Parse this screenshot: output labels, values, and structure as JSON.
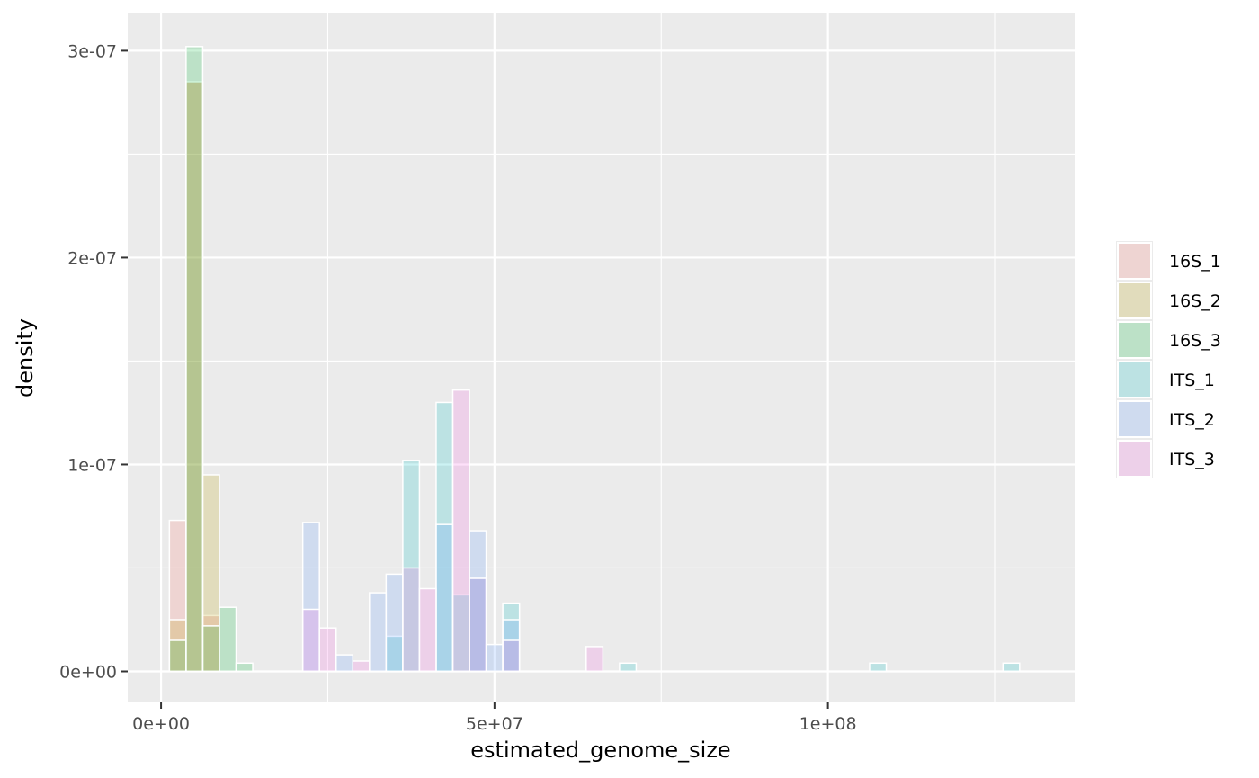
{
  "chart_data": {
    "type": "histogram",
    "xlabel": "estimated_genome_size",
    "ylabel": "density",
    "xlim": [
      -5000000,
      137000000
    ],
    "ylim": [
      -1.5e-08,
      3.18e-07
    ],
    "bin_width": 2500000,
    "x_ticks": [
      {
        "value": 0,
        "label": "0e+00"
      },
      {
        "value": 50000000,
        "label": "5e+07"
      },
      {
        "value": 100000000,
        "label": "1e+08"
      }
    ],
    "y_ticks": [
      {
        "value": 0,
        "label": "0e+00"
      },
      {
        "value": 1e-07,
        "label": "1e-07"
      },
      {
        "value": 2e-07,
        "label": "2e-07"
      },
      {
        "value": 3e-07,
        "label": "3e-07"
      }
    ],
    "grid": true,
    "legend_position": "right",
    "series": [
      {
        "name": "16S_1",
        "color": "#F8766D",
        "bins": [
          {
            "x": 2500000,
            "density": 7.3e-08
          },
          {
            "x": 5000000,
            "density": 2.85e-07
          },
          {
            "x": 7500000,
            "density": 2.7e-08
          }
        ]
      },
      {
        "name": "16S_2",
        "color": "#B79F00",
        "bins": [
          {
            "x": 2500000,
            "density": 2.5e-08
          },
          {
            "x": 5000000,
            "density": 2.85e-07
          },
          {
            "x": 7500000,
            "density": 9.5e-08
          }
        ]
      },
      {
        "name": "16S_3",
        "color": "#00BA38",
        "bins": [
          {
            "x": 2500000,
            "density": 1.5e-08
          },
          {
            "x": 5000000,
            "density": 3.02e-07
          },
          {
            "x": 7500000,
            "density": 2.2e-08
          },
          {
            "x": 10000000,
            "density": 3.1e-08
          },
          {
            "x": 12500000,
            "density": 4e-09
          }
        ]
      },
      {
        "name": "ITS_1",
        "color": "#00BFC4",
        "bins": [
          {
            "x": 35000000,
            "density": 1.7e-08
          },
          {
            "x": 37500000,
            "density": 1.02e-07
          },
          {
            "x": 42500000,
            "density": 1.3e-07
          },
          {
            "x": 45000000,
            "density": 3.7e-08
          },
          {
            "x": 47500000,
            "density": 4.5e-08
          },
          {
            "x": 52500000,
            "density": 3.3e-08
          },
          {
            "x": 70000000,
            "density": 4e-09
          },
          {
            "x": 107500000,
            "density": 4e-09
          },
          {
            "x": 127500000,
            "density": 4e-09
          }
        ]
      },
      {
        "name": "ITS_2",
        "color": "#619CFF",
        "bins": [
          {
            "x": 22500000,
            "density": 7.2e-08
          },
          {
            "x": 27500000,
            "density": 8e-09
          },
          {
            "x": 32500000,
            "density": 3.8e-08
          },
          {
            "x": 35000000,
            "density": 4.7e-08
          },
          {
            "x": 42500000,
            "density": 7.1e-08
          },
          {
            "x": 47500000,
            "density": 6.8e-08
          },
          {
            "x": 50000000,
            "density": 1.3e-08
          },
          {
            "x": 52500000,
            "density": 2.5e-08
          }
        ]
      },
      {
        "name": "ITS_3",
        "color": "#F564E3",
        "bins": [
          {
            "x": 22500000,
            "density": 3e-08
          },
          {
            "x": 25000000,
            "density": 2.1e-08
          },
          {
            "x": 30000000,
            "density": 5e-09
          },
          {
            "x": 37500000,
            "density": 5e-08
          },
          {
            "x": 40000000,
            "density": 4e-08
          },
          {
            "x": 45000000,
            "density": 1.36e-07
          },
          {
            "x": 47500000,
            "density": 4.5e-08
          },
          {
            "x": 52500000,
            "density": 1.5e-08
          },
          {
            "x": 65000000,
            "density": 1.2e-08
          }
        ]
      }
    ]
  }
}
